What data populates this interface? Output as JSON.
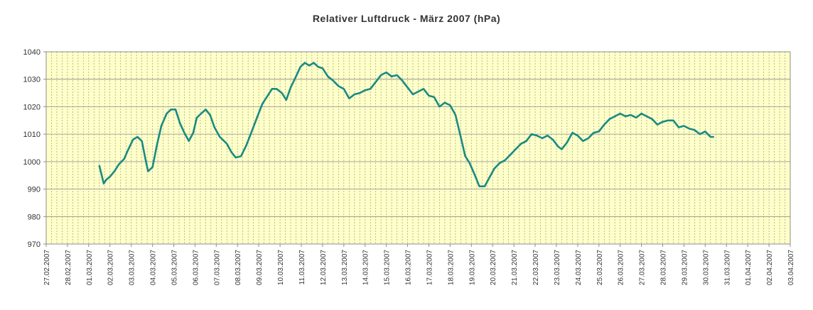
{
  "chart_data": {
    "type": "line",
    "title": "Relativer Luftdruck - März 2007 (hPa)",
    "xlabel": "",
    "ylabel": "",
    "ylim": [
      970,
      1040
    ],
    "yticks": [
      "970",
      "980",
      "990",
      "1000",
      "1010",
      "1020",
      "1030",
      "1040"
    ],
    "x_tick_labels": [
      "27.02.2007",
      "28.02.2007",
      "01.03.2007",
      "02.03.2007",
      "03.03.2007",
      "04.03.2007",
      "05.03.2007",
      "06.03.2007",
      "07.03.2007",
      "08.03.2007",
      "09.03.2007",
      "10.03.2007",
      "11.03.2007",
      "12.03.2007",
      "13.03.2007",
      "14.03.2007",
      "15.03.2007",
      "16.03.2007",
      "17.03.2007",
      "18.03.2007",
      "19.03.2007",
      "20.03.2007",
      "21.03.2007",
      "22.03.2007",
      "23.03.2007",
      "24.03.2007",
      "25.03.2007",
      "26.03.2007",
      "27.03.2007",
      "28.03.2007",
      "29.03.2007",
      "30.03.2007",
      "31.03.2007",
      "01.04.2007",
      "02.04.2007",
      "03.04.2007"
    ],
    "grid": true,
    "plot_background": "#ffffc8",
    "series_color": "#1a8a82",
    "series": [
      {
        "name": "",
        "points": [
          [
            "01.03.2007 12:00",
            998.5
          ],
          [
            "01.03.2007 17:00",
            992.0
          ],
          [
            "01.03.2007 20:00",
            993.5
          ],
          [
            "02.03.2007 00:00",
            994.5
          ],
          [
            "02.03.2007 05:00",
            996.5
          ],
          [
            "02.03.2007 10:00",
            999.0
          ],
          [
            "02.03.2007 16:00",
            1001.0
          ],
          [
            "02.03.2007 20:00",
            1004.0
          ],
          [
            "03.03.2007 02:00",
            1008.0
          ],
          [
            "03.03.2007 07:00",
            1009.0
          ],
          [
            "03.03.2007 12:00",
            1007.5
          ],
          [
            "03.03.2007 16:00",
            1001.0
          ],
          [
            "03.03.2007 19:00",
            996.5
          ],
          [
            "04.03.2007 00:00",
            998.0
          ],
          [
            "04.03.2007 05:00",
            1006.0
          ],
          [
            "04.03.2007 10:00",
            1013.0
          ],
          [
            "04.03.2007 16:00",
            1017.5
          ],
          [
            "04.03.2007 21:00",
            1019.0
          ],
          [
            "05.03.2007 02:00",
            1019.0
          ],
          [
            "05.03.2007 07:00",
            1014.0
          ],
          [
            "05.03.2007 12:00",
            1010.5
          ],
          [
            "05.03.2007 17:00",
            1007.5
          ],
          [
            "05.03.2007 22:00",
            1010.5
          ],
          [
            "06.03.2007 02:00",
            1016.0
          ],
          [
            "06.03.2007 07:00",
            1017.5
          ],
          [
            "06.03.2007 12:00",
            1019.0
          ],
          [
            "06.03.2007 17:00",
            1017.0
          ],
          [
            "06.03.2007 22:00",
            1012.5
          ],
          [
            "07.03.2007 04:00",
            1009.0
          ],
          [
            "07.03.2007 12:00",
            1006.5
          ],
          [
            "07.03.2007 17:00",
            1003.5
          ],
          [
            "07.03.2007 22:00",
            1001.5
          ],
          [
            "08.03.2007 04:00",
            1002.0
          ],
          [
            "08.03.2007 10:00",
            1006.0
          ],
          [
            "08.03.2007 16:00",
            1011.0
          ],
          [
            "08.03.2007 22:00",
            1016.0
          ],
          [
            "09.03.2007 04:00",
            1021.0
          ],
          [
            "09.03.2007 10:00",
            1024.0
          ],
          [
            "09.03.2007 15:00",
            1026.5
          ],
          [
            "09.03.2007 20:00",
            1026.5
          ],
          [
            "10.03.2007 02:00",
            1025.0
          ],
          [
            "10.03.2007 07:00",
            1022.5
          ],
          [
            "10.03.2007 12:00",
            1027.0
          ],
          [
            "10.03.2007 18:00",
            1031.0
          ],
          [
            "10.03.2007 23:00",
            1034.5
          ],
          [
            "11.03.2007 04:00",
            1036.0
          ],
          [
            "11.03.2007 09:00",
            1035.0
          ],
          [
            "11.03.2007 14:00",
            1036.0
          ],
          [
            "11.03.2007 19:00",
            1034.5
          ],
          [
            "12.03.2007 00:00",
            1034.0
          ],
          [
            "12.03.2007 06:00",
            1031.0
          ],
          [
            "12.03.2007 12:00",
            1029.5
          ],
          [
            "12.03.2007 18:00",
            1027.5
          ],
          [
            "13.03.2007 00:00",
            1026.5
          ],
          [
            "13.03.2007 06:00",
            1023.0
          ],
          [
            "13.03.2007 12:00",
            1024.5
          ],
          [
            "13.03.2007 18:00",
            1025.0
          ],
          [
            "14.03.2007 00:00",
            1026.0
          ],
          [
            "14.03.2007 06:00",
            1026.5
          ],
          [
            "14.03.2007 12:00",
            1029.0
          ],
          [
            "14.03.2007 18:00",
            1031.5
          ],
          [
            "15.03.2007 00:00",
            1032.5
          ],
          [
            "15.03.2007 06:00",
            1031.0
          ],
          [
            "15.03.2007 12:00",
            1031.5
          ],
          [
            "15.03.2007 18:00",
            1029.5
          ],
          [
            "16.03.2007 00:00",
            1027.0
          ],
          [
            "16.03.2007 06:00",
            1024.5
          ],
          [
            "16.03.2007 12:00",
            1025.5
          ],
          [
            "16.03.2007 18:00",
            1026.5
          ],
          [
            "17.03.2007 00:00",
            1024.0
          ],
          [
            "17.03.2007 06:00",
            1023.5
          ],
          [
            "17.03.2007 12:00",
            1020.0
          ],
          [
            "17.03.2007 18:00",
            1021.5
          ],
          [
            "18.03.2007 00:00",
            1020.5
          ],
          [
            "18.03.2007 06:00",
            1017.0
          ],
          [
            "18.03.2007 12:00",
            1009.0
          ],
          [
            "18.03.2007 17:00",
            1002.0
          ],
          [
            "18.03.2007 22:00",
            999.5
          ],
          [
            "19.03.2007 04:00",
            995.0
          ],
          [
            "19.03.2007 09:00",
            991.0
          ],
          [
            "19.03.2007 15:00",
            991.0
          ],
          [
            "19.03.2007 20:00",
            994.0
          ],
          [
            "20.03.2007 02:00",
            997.5
          ],
          [
            "20.03.2007 08:00",
            999.5
          ],
          [
            "20.03.2007 14:00",
            1000.5
          ],
          [
            "20.03.2007 20:00",
            1002.5
          ],
          [
            "21.03.2007 02:00",
            1004.5
          ],
          [
            "21.03.2007 08:00",
            1006.5
          ],
          [
            "21.03.2007 14:00",
            1007.5
          ],
          [
            "21.03.2007 20:00",
            1010.0
          ],
          [
            "22.03.2007 02:00",
            1009.5
          ],
          [
            "22.03.2007 08:00",
            1008.5
          ],
          [
            "22.03.2007 14:00",
            1009.5
          ],
          [
            "22.03.2007 20:00",
            1008.0
          ],
          [
            "23.03.2007 02:00",
            1005.5
          ],
          [
            "23.03.2007 06:00",
            1004.5
          ],
          [
            "23.03.2007 12:00",
            1007.0
          ],
          [
            "23.03.2007 18:00",
            1010.5
          ],
          [
            "24.03.2007 00:00",
            1009.5
          ],
          [
            "24.03.2007 06:00",
            1007.5
          ],
          [
            "24.03.2007 12:00",
            1008.5
          ],
          [
            "24.03.2007 18:00",
            1010.5
          ],
          [
            "25.03.2007 00:00",
            1011.0
          ],
          [
            "25.03.2007 06:00",
            1013.5
          ],
          [
            "25.03.2007 12:00",
            1015.5
          ],
          [
            "25.03.2007 18:00",
            1016.5
          ],
          [
            "26.03.2007 00:00",
            1017.5
          ],
          [
            "26.03.2007 06:00",
            1016.5
          ],
          [
            "26.03.2007 12:00",
            1017.0
          ],
          [
            "26.03.2007 18:00",
            1016.0
          ],
          [
            "27.03.2007 00:00",
            1017.5
          ],
          [
            "27.03.2007 06:00",
            1016.5
          ],
          [
            "27.03.2007 12:00",
            1015.5
          ],
          [
            "27.03.2007 18:00",
            1013.5
          ],
          [
            "28.03.2007 00:00",
            1014.5
          ],
          [
            "28.03.2007 06:00",
            1015.0
          ],
          [
            "28.03.2007 12:00",
            1015.0
          ],
          [
            "28.03.2007 18:00",
            1012.5
          ],
          [
            "29.03.2007 00:00",
            1013.0
          ],
          [
            "29.03.2007 06:00",
            1012.0
          ],
          [
            "29.03.2007 12:00",
            1011.5
          ],
          [
            "29.03.2007 18:00",
            1010.0
          ],
          [
            "30.03.2007 00:00",
            1011.0
          ],
          [
            "30.03.2007 06:00",
            1009.0
          ],
          [
            "30.03.2007 09:00",
            1009.0
          ]
        ]
      }
    ]
  }
}
